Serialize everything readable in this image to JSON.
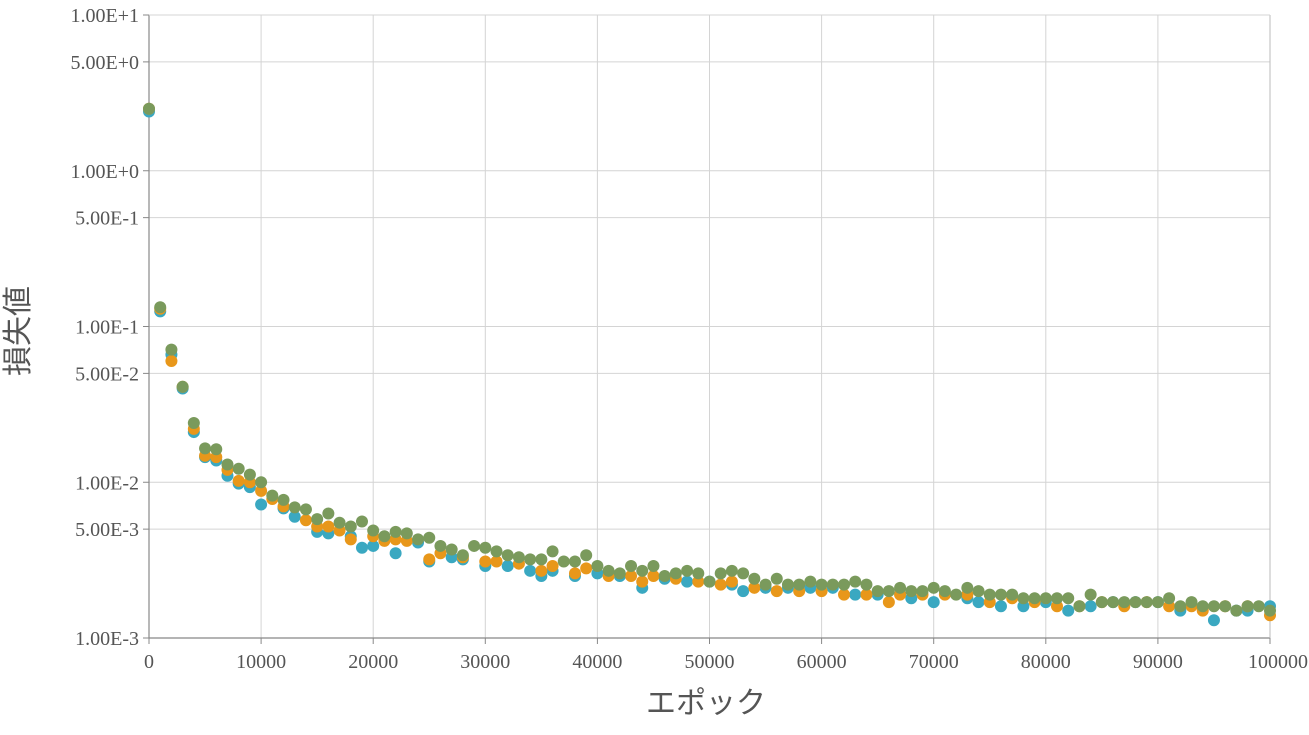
{
  "chart_data": {
    "type": "scatter",
    "title": "",
    "xlabel": "エポック",
    "ylabel": "損失値",
    "xlim": [
      0,
      100000
    ],
    "ylim": [
      0.001,
      10
    ],
    "yscale": "log",
    "grid": true,
    "x_ticks": [
      {
        "value": 0,
        "label": "0"
      },
      {
        "value": 10000,
        "label": "10000"
      },
      {
        "value": 20000,
        "label": "20000"
      },
      {
        "value": 30000,
        "label": "30000"
      },
      {
        "value": 40000,
        "label": "40000"
      },
      {
        "value": 50000,
        "label": "50000"
      },
      {
        "value": 60000,
        "label": "60000"
      },
      {
        "value": 70000,
        "label": "70000"
      },
      {
        "value": 80000,
        "label": "80000"
      },
      {
        "value": 90000,
        "label": "90000"
      },
      {
        "value": 100000,
        "label": "100000"
      }
    ],
    "y_ticks": [
      {
        "value": 10,
        "label": "1.00E+1"
      },
      {
        "value": 5,
        "label": "5.00E+0"
      },
      {
        "value": 1,
        "label": "1.00E+0"
      },
      {
        "value": 0.5,
        "label": "5.00E-1"
      },
      {
        "value": 0.1,
        "label": "1.00E-1"
      },
      {
        "value": 0.05,
        "label": "5.00E-2"
      },
      {
        "value": 0.01,
        "label": "1.00E-2"
      },
      {
        "value": 0.005,
        "label": "5.00E-3"
      },
      {
        "value": 0.001,
        "label": "1.00E-3"
      }
    ],
    "series": [
      {
        "color": "#3aa8c1",
        "points": [
          [
            0,
            2.4
          ],
          [
            1000,
            0.125
          ],
          [
            2000,
            0.066
          ],
          [
            3000,
            0.04
          ],
          [
            4000,
            0.021
          ],
          [
            5000,
            0.0145
          ],
          [
            6000,
            0.0138
          ],
          [
            7000,
            0.011
          ],
          [
            8000,
            0.0098
          ],
          [
            9000,
            0.0093
          ],
          [
            10000,
            0.0072
          ],
          [
            12000,
            0.0068
          ],
          [
            13000,
            0.006
          ],
          [
            15000,
            0.0048
          ],
          [
            16000,
            0.0047
          ],
          [
            18000,
            0.0045
          ],
          [
            19000,
            0.0038
          ],
          [
            20000,
            0.0039
          ],
          [
            22000,
            0.0035
          ],
          [
            24000,
            0.0041
          ],
          [
            25000,
            0.0031
          ],
          [
            27000,
            0.0033
          ],
          [
            28000,
            0.0032
          ],
          [
            30000,
            0.0029
          ],
          [
            32000,
            0.0029
          ],
          [
            34000,
            0.0027
          ],
          [
            35000,
            0.0025
          ],
          [
            36000,
            0.0027
          ],
          [
            38000,
            0.0025
          ],
          [
            40000,
            0.0026
          ],
          [
            42000,
            0.0025
          ],
          [
            44000,
            0.0021
          ],
          [
            46000,
            0.0024
          ],
          [
            48000,
            0.0023
          ],
          [
            50000,
            0.0023
          ],
          [
            52000,
            0.0022
          ],
          [
            53000,
            0.002
          ],
          [
            55000,
            0.0021
          ],
          [
            57000,
            0.0021
          ],
          [
            59000,
            0.0021
          ],
          [
            61000,
            0.0021
          ],
          [
            63000,
            0.0019
          ],
          [
            65000,
            0.0019
          ],
          [
            68000,
            0.0018
          ],
          [
            70000,
            0.0017
          ],
          [
            73000,
            0.0018
          ],
          [
            74000,
            0.0017
          ],
          [
            76000,
            0.0016
          ],
          [
            78000,
            0.0016
          ],
          [
            80000,
            0.0017
          ],
          [
            82000,
            0.0015
          ],
          [
            84000,
            0.0016
          ],
          [
            86000,
            0.0017
          ],
          [
            88000,
            0.0017
          ],
          [
            90000,
            0.0017
          ],
          [
            92000,
            0.0015
          ],
          [
            95000,
            0.0013
          ],
          [
            97000,
            0.0015
          ],
          [
            98000,
            0.0015
          ],
          [
            100000,
            0.0016
          ]
        ]
      },
      {
        "color": "#e8971a",
        "points": [
          [
            0,
            2.5
          ],
          [
            1000,
            0.13
          ],
          [
            2000,
            0.06
          ],
          [
            3000,
            0.041
          ],
          [
            4000,
            0.022
          ],
          [
            5000,
            0.0148
          ],
          [
            6000,
            0.0145
          ],
          [
            7000,
            0.012
          ],
          [
            8000,
            0.0102
          ],
          [
            9000,
            0.01
          ],
          [
            10000,
            0.0088
          ],
          [
            11000,
            0.0078
          ],
          [
            12000,
            0.007
          ],
          [
            14000,
            0.0057
          ],
          [
            15000,
            0.0052
          ],
          [
            16000,
            0.0052
          ],
          [
            17000,
            0.0049
          ],
          [
            18000,
            0.0043
          ],
          [
            20000,
            0.0045
          ],
          [
            21000,
            0.0042
          ],
          [
            22000,
            0.0043
          ],
          [
            23000,
            0.0042
          ],
          [
            25000,
            0.0032
          ],
          [
            26000,
            0.0035
          ],
          [
            28000,
            0.0033
          ],
          [
            30000,
            0.0031
          ],
          [
            31000,
            0.0031
          ],
          [
            33000,
            0.003
          ],
          [
            35000,
            0.0027
          ],
          [
            36000,
            0.0029
          ],
          [
            38000,
            0.0026
          ],
          [
            39000,
            0.0028
          ],
          [
            41000,
            0.0025
          ],
          [
            43000,
            0.0025
          ],
          [
            44000,
            0.0023
          ],
          [
            45000,
            0.0025
          ],
          [
            47000,
            0.0024
          ],
          [
            49000,
            0.0023
          ],
          [
            51000,
            0.0022
          ],
          [
            52000,
            0.0023
          ],
          [
            54000,
            0.0021
          ],
          [
            56000,
            0.002
          ],
          [
            58000,
            0.002
          ],
          [
            60000,
            0.002
          ],
          [
            62000,
            0.0019
          ],
          [
            64000,
            0.0019
          ],
          [
            66000,
            0.0017
          ],
          [
            67000,
            0.0019
          ],
          [
            69000,
            0.0019
          ],
          [
            71000,
            0.0019
          ],
          [
            73000,
            0.0019
          ],
          [
            75000,
            0.0017
          ],
          [
            77000,
            0.0018
          ],
          [
            79000,
            0.0017
          ],
          [
            81000,
            0.0016
          ],
          [
            83000,
            0.0016
          ],
          [
            85000,
            0.0017
          ],
          [
            87000,
            0.0016
          ],
          [
            89000,
            0.0017
          ],
          [
            91000,
            0.0016
          ],
          [
            93000,
            0.0016
          ],
          [
            94000,
            0.0015
          ],
          [
            96000,
            0.0016
          ],
          [
            98000,
            0.0016
          ],
          [
            100000,
            0.0014
          ]
        ]
      },
      {
        "color": "#7a9a5c",
        "points": [
          [
            0,
            2.5
          ],
          [
            1000,
            0.133
          ],
          [
            2000,
            0.071
          ],
          [
            3000,
            0.041
          ],
          [
            4000,
            0.024
          ],
          [
            5000,
            0.0165
          ],
          [
            6000,
            0.0163
          ],
          [
            7000,
            0.013
          ],
          [
            8000,
            0.0122
          ],
          [
            9000,
            0.0112
          ],
          [
            10000,
            0.01
          ],
          [
            11000,
            0.0082
          ],
          [
            12000,
            0.0077
          ],
          [
            13000,
            0.0069
          ],
          [
            14000,
            0.0067
          ],
          [
            15000,
            0.0058
          ],
          [
            16000,
            0.0063
          ],
          [
            17000,
            0.0055
          ],
          [
            18000,
            0.0052
          ],
          [
            19000,
            0.0056
          ],
          [
            20000,
            0.0049
          ],
          [
            21000,
            0.0045
          ],
          [
            22000,
            0.0048
          ],
          [
            23000,
            0.0047
          ],
          [
            24000,
            0.0043
          ],
          [
            25000,
            0.0044
          ],
          [
            26000,
            0.0039
          ],
          [
            27000,
            0.0037
          ],
          [
            28000,
            0.0034
          ],
          [
            29000,
            0.0039
          ],
          [
            30000,
            0.0038
          ],
          [
            31000,
            0.0036
          ],
          [
            32000,
            0.0034
          ],
          [
            33000,
            0.0033
          ],
          [
            34000,
            0.0032
          ],
          [
            35000,
            0.0032
          ],
          [
            36000,
            0.0036
          ],
          [
            37000,
            0.0031
          ],
          [
            38000,
            0.0031
          ],
          [
            39000,
            0.0034
          ],
          [
            40000,
            0.0029
          ],
          [
            41000,
            0.0027
          ],
          [
            42000,
            0.0026
          ],
          [
            43000,
            0.0029
          ],
          [
            44000,
            0.0027
          ],
          [
            45000,
            0.0029
          ],
          [
            46000,
            0.0025
          ],
          [
            47000,
            0.0026
          ],
          [
            48000,
            0.0027
          ],
          [
            49000,
            0.0026
          ],
          [
            50000,
            0.0023
          ],
          [
            51000,
            0.0026
          ],
          [
            52000,
            0.0027
          ],
          [
            53000,
            0.0026
          ],
          [
            54000,
            0.0024
          ],
          [
            55000,
            0.0022
          ],
          [
            56000,
            0.0024
          ],
          [
            57000,
            0.0022
          ],
          [
            58000,
            0.0022
          ],
          [
            59000,
            0.0023
          ],
          [
            60000,
            0.0022
          ],
          [
            61000,
            0.0022
          ],
          [
            62000,
            0.0022
          ],
          [
            63000,
            0.0023
          ],
          [
            64000,
            0.0022
          ],
          [
            65000,
            0.002
          ],
          [
            66000,
            0.002
          ],
          [
            67000,
            0.0021
          ],
          [
            68000,
            0.002
          ],
          [
            69000,
            0.002
          ],
          [
            70000,
            0.0021
          ],
          [
            71000,
            0.002
          ],
          [
            72000,
            0.0019
          ],
          [
            73000,
            0.0021
          ],
          [
            74000,
            0.002
          ],
          [
            75000,
            0.0019
          ],
          [
            76000,
            0.0019
          ],
          [
            77000,
            0.0019
          ],
          [
            78000,
            0.0018
          ],
          [
            79000,
            0.0018
          ],
          [
            80000,
            0.0018
          ],
          [
            81000,
            0.0018
          ],
          [
            82000,
            0.0018
          ],
          [
            83000,
            0.0016
          ],
          [
            84000,
            0.0019
          ],
          [
            85000,
            0.0017
          ],
          [
            86000,
            0.0017
          ],
          [
            87000,
            0.0017
          ],
          [
            88000,
            0.0017
          ],
          [
            89000,
            0.0017
          ],
          [
            90000,
            0.0017
          ],
          [
            91000,
            0.0018
          ],
          [
            92000,
            0.0016
          ],
          [
            93000,
            0.0017
          ],
          [
            94000,
            0.0016
          ],
          [
            95000,
            0.0016
          ],
          [
            96000,
            0.0016
          ],
          [
            97000,
            0.0015
          ],
          [
            98000,
            0.0016
          ],
          [
            99000,
            0.0016
          ],
          [
            100000,
            0.0015
          ]
        ]
      }
    ]
  }
}
